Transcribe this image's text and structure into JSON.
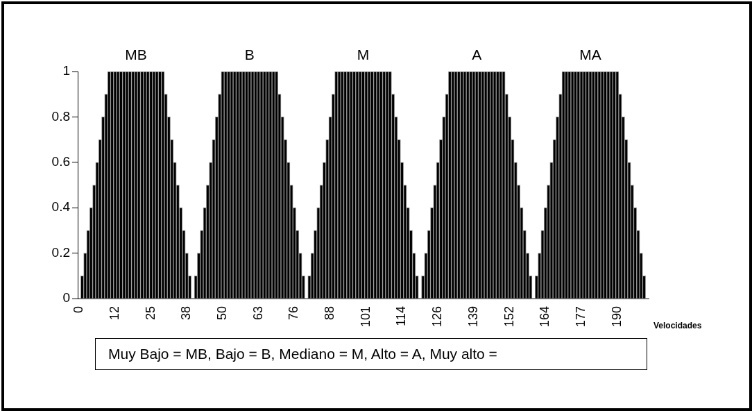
{
  "chart_data": {
    "type": "bar",
    "categories": [
      "0",
      null,
      null,
      null,
      null,
      null,
      null,
      null,
      null,
      null,
      null,
      null,
      "12",
      null,
      null,
      null,
      null,
      null,
      null,
      null,
      null,
      null,
      null,
      null,
      "25",
      null,
      null,
      null,
      null,
      null,
      null,
      null,
      null,
      null,
      null,
      null,
      "38",
      null,
      null,
      null,
      null,
      null,
      null,
      null,
      null,
      null,
      null,
      null,
      "50",
      null,
      null,
      null,
      null,
      null,
      null,
      null,
      null,
      null,
      null,
      null,
      "63",
      null,
      null,
      null,
      null,
      null,
      null,
      null,
      null,
      null,
      null,
      null,
      "76",
      null,
      null,
      null,
      null,
      null,
      null,
      null,
      null,
      null,
      null,
      null,
      "88",
      null,
      null,
      null,
      null,
      null,
      null,
      null,
      null,
      null,
      null,
      null,
      "101",
      null,
      null,
      null,
      null,
      null,
      null,
      null,
      null,
      null,
      null,
      null,
      "114",
      null,
      null,
      null,
      null,
      null,
      null,
      null,
      null,
      null,
      null,
      null,
      "126",
      null,
      null,
      null,
      null,
      null,
      null,
      null,
      null,
      null,
      null,
      null,
      "139",
      null,
      null,
      null,
      null,
      null,
      null,
      null,
      null,
      null,
      null,
      null,
      "152",
      null,
      null,
      null,
      null,
      null,
      null,
      null,
      null,
      null,
      null,
      null,
      "164",
      null,
      null,
      null,
      null,
      null,
      null,
      null,
      null,
      null,
      null,
      null,
      "177",
      null,
      null,
      null,
      null,
      null,
      null,
      null,
      null,
      null,
      null,
      null,
      "190",
      null,
      null,
      null,
      null,
      null,
      null,
      null,
      null,
      null,
      null
    ],
    "values": [
      0,
      0.1,
      0.2,
      0.3,
      0.4,
      0.5,
      0.6,
      0.7,
      0.8,
      0.9,
      1,
      1,
      1,
      1,
      1,
      1,
      1,
      1,
      1,
      1,
      1,
      1,
      1,
      1,
      1,
      1,
      1,
      1,
      1,
      0.9,
      0.8,
      0.7,
      0.6,
      0.5,
      0.4,
      0.3,
      0.2,
      0.1,
      0,
      0.1,
      0.2,
      0.3,
      0.4,
      0.5,
      0.6,
      0.7,
      0.8,
      0.9,
      1,
      1,
      1,
      1,
      1,
      1,
      1,
      1,
      1,
      1,
      1,
      1,
      1,
      1,
      1,
      1,
      1,
      1,
      1,
      0.9,
      0.8,
      0.7,
      0.6,
      0.5,
      0.4,
      0.3,
      0.2,
      0.1,
      0,
      0.1,
      0.2,
      0.3,
      0.4,
      0.5,
      0.6,
      0.7,
      0.8,
      0.9,
      1,
      1,
      1,
      1,
      1,
      1,
      1,
      1,
      1,
      1,
      1,
      1,
      1,
      1,
      1,
      1,
      1,
      1,
      1,
      0.9,
      0.8,
      0.7,
      0.6,
      0.5,
      0.4,
      0.3,
      0.2,
      0.1,
      0,
      0.1,
      0.2,
      0.3,
      0.4,
      0.5,
      0.6,
      0.7,
      0.8,
      0.9,
      1,
      1,
      1,
      1,
      1,
      1,
      1,
      1,
      1,
      1,
      1,
      1,
      1,
      1,
      1,
      1,
      1,
      1,
      1,
      0.9,
      0.8,
      0.7,
      0.6,
      0.5,
      0.4,
      0.3,
      0.2,
      0.1,
      0,
      0.1,
      0.2,
      0.3,
      0.4,
      0.5,
      0.6,
      0.7,
      0.8,
      0.9,
      1,
      1,
      1,
      1,
      1,
      1,
      1,
      1,
      1,
      1,
      1,
      1,
      1,
      1,
      1,
      1,
      1,
      1,
      1,
      0.9,
      0.8,
      0.7,
      0.6,
      0.5,
      0.4,
      0.3,
      0.2,
      0.1,
      0
    ],
    "color": "#000000",
    "xlabel": "Velocidades",
    "ylim": [
      0,
      1
    ],
    "yticks": [
      0,
      0.2,
      0.4,
      0.6,
      0.8,
      1
    ],
    "grid": false,
    "legend": false,
    "annotations": [
      {
        "text": "MB",
        "y": 1
      },
      {
        "text": "B",
        "y": 1
      },
      {
        "text": "M",
        "y": 1
      },
      {
        "text": "A",
        "y": 1
      },
      {
        "text": "MA",
        "y": 1
      },
      "Muy Bajo = MB, Bajo = B, Mediano = M, Alto = A, Muy alto ="
    ]
  }
}
